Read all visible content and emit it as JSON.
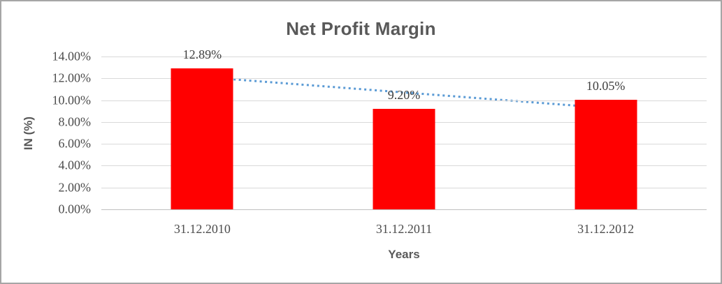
{
  "chart_data": {
    "type": "bar",
    "title": "Net Profit Margin",
    "xlabel": "Years",
    "ylabel": "IN (%)",
    "categories": [
      "31.12.2010",
      "31.12.2011",
      "31.12.2012"
    ],
    "values": [
      12.89,
      9.2,
      10.05
    ],
    "data_labels": [
      "12.89%",
      "9.20%",
      "10.05%"
    ],
    "y_ticks": [
      "14.00%",
      "12.00%",
      "10.00%",
      "8.00%",
      "6.00%",
      "4.00%",
      "2.00%",
      "0.00%"
    ],
    "ylim": [
      0,
      14
    ],
    "grid": true,
    "legend": "none",
    "bar_color": "#ff0000",
    "gridline_color": "#d9d9d9",
    "axis_line_color": "#bfbfbf",
    "text_color": "#595959",
    "trendline": {
      "type": "linear",
      "style": "dotted",
      "color": "#5b9bd5",
      "start_value": 12.13,
      "end_value": 9.29
    }
  }
}
